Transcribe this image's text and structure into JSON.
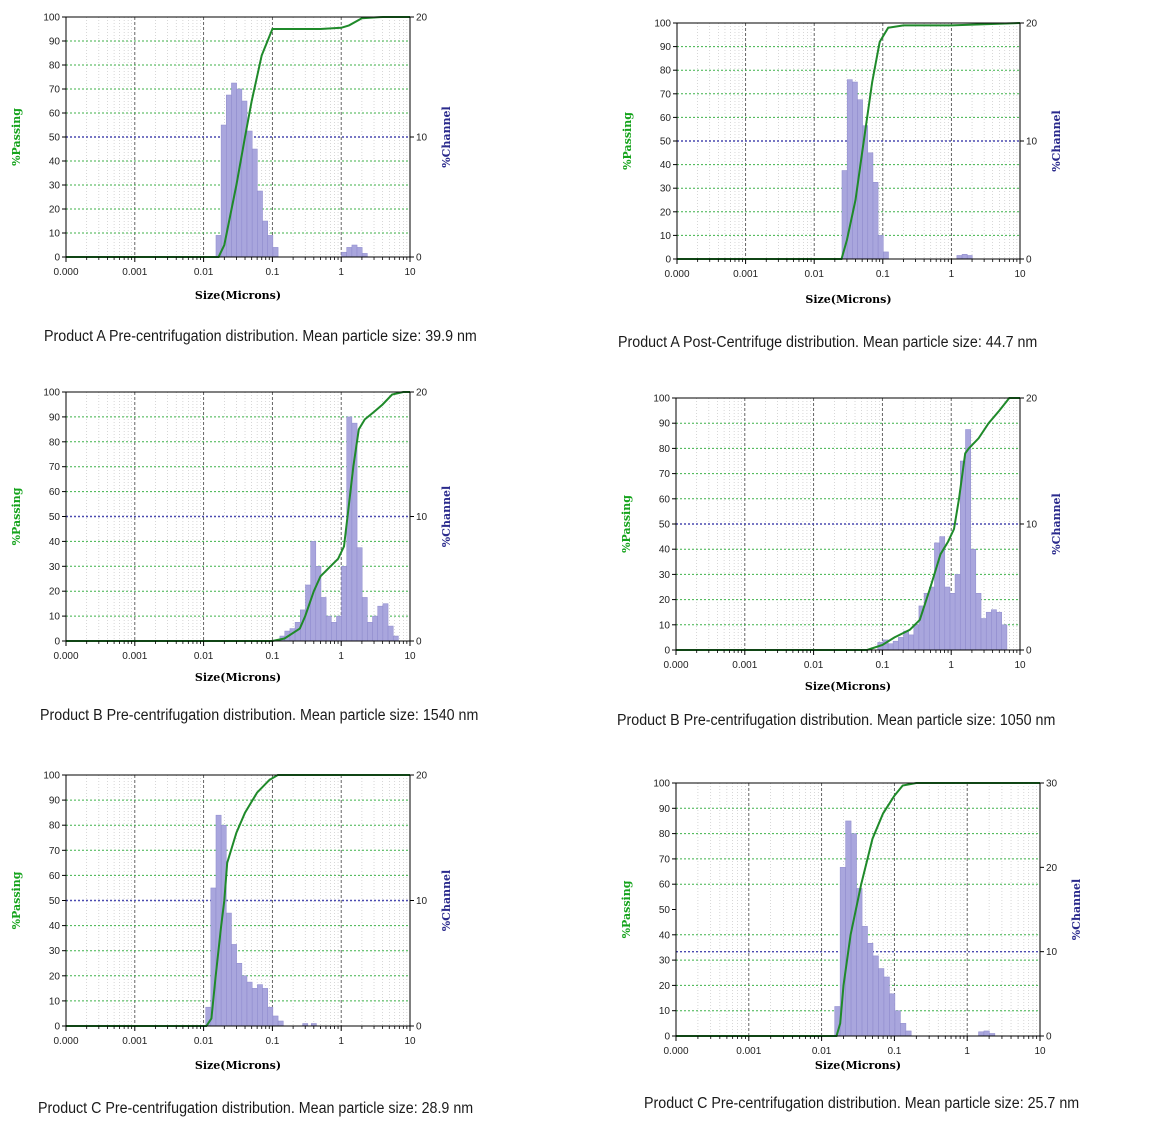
{
  "chart_data": [
    {
      "type": "bar",
      "caption": "Product A Pre-centrifugation distribution. Mean particle size: 39.9 nm",
      "xlabel": "Size(Microns)",
      "ylabel_left": "%Passing",
      "ylabel_right": "%Channel",
      "xscale": "log",
      "xlim": [
        0.0001,
        10
      ],
      "x_ticks": [
        "0.000",
        "0.001",
        "0.01",
        "0.1",
        "1",
        "10"
      ],
      "ylim_left": [
        0,
        100
      ],
      "ylim_right": [
        0,
        20
      ],
      "y_ticks_left": [
        "0",
        "10",
        "20",
        "30",
        "40",
        "50",
        "60",
        "70",
        "80",
        "90",
        "100"
      ],
      "y_ticks_right": [
        "0",
        "10",
        "20"
      ],
      "reference_line_right": 10,
      "channel_series": [
        [
          0.0165,
          1.8
        ],
        [
          0.0196,
          11.0
        ],
        [
          0.0233,
          13.5
        ],
        [
          0.0277,
          14.5
        ],
        [
          0.033,
          14.0
        ],
        [
          0.0392,
          13.0
        ],
        [
          0.0466,
          10.5
        ],
        [
          0.0554,
          9.0
        ],
        [
          0.0659,
          5.5
        ],
        [
          0.0784,
          3.0
        ],
        [
          0.0932,
          1.8
        ],
        [
          0.111,
          0.8
        ],
        [
          1.1,
          0.4
        ],
        [
          1.31,
          0.8
        ],
        [
          1.56,
          1.0
        ],
        [
          1.85,
          0.8
        ],
        [
          2.2,
          0.3
        ]
      ],
      "passing_curve": [
        [
          0.0001,
          0
        ],
        [
          0.0165,
          0
        ],
        [
          0.02,
          5
        ],
        [
          0.03,
          30
        ],
        [
          0.04,
          50
        ],
        [
          0.05,
          65
        ],
        [
          0.07,
          84
        ],
        [
          0.1,
          95
        ],
        [
          0.14,
          95
        ],
        [
          0.5,
          95
        ],
        [
          1,
          95.5
        ],
        [
          1.3,
          96.5
        ],
        [
          2,
          99.5
        ],
        [
          4,
          100
        ],
        [
          10,
          100
        ]
      ]
    },
    {
      "type": "bar",
      "caption": "Product A Post-Centrifuge distribution. Mean particle size: 44.7 nm",
      "xlabel": "Size(Microns)",
      "ylabel_left": "%Passing",
      "ylabel_right": "%Channel",
      "xscale": "log",
      "xlim": [
        0.0001,
        10
      ],
      "x_ticks": [
        "0.000",
        "0.001",
        "0.01",
        "0.1",
        "1",
        "10"
      ],
      "ylim_left": [
        0,
        100
      ],
      "ylim_right": [
        0,
        20
      ],
      "y_ticks_left": [
        "0",
        "10",
        "20",
        "30",
        "40",
        "50",
        "60",
        "70",
        "80",
        "90",
        "100"
      ],
      "y_ticks_right": [
        "0",
        "10",
        "20"
      ],
      "reference_line_right": 10,
      "channel_series": [
        [
          0.0277,
          7.5
        ],
        [
          0.033,
          15.2
        ],
        [
          0.0392,
          15.0
        ],
        [
          0.0466,
          13.5
        ],
        [
          0.0554,
          11.3
        ],
        [
          0.0659,
          9.0
        ],
        [
          0.0784,
          6.5
        ],
        [
          0.0932,
          2.0
        ],
        [
          0.111,
          0.6
        ],
        [
          1.31,
          0.3
        ],
        [
          1.56,
          0.4
        ],
        [
          1.85,
          0.3
        ]
      ],
      "passing_curve": [
        [
          0.0001,
          0
        ],
        [
          0.025,
          0
        ],
        [
          0.03,
          8
        ],
        [
          0.04,
          25
        ],
        [
          0.05,
          45
        ],
        [
          0.07,
          75
        ],
        [
          0.09,
          92
        ],
        [
          0.12,
          98
        ],
        [
          0.2,
          99
        ],
        [
          1,
          99
        ],
        [
          10,
          100
        ]
      ]
    },
    {
      "type": "bar",
      "caption": "Product B Pre-centrifugation distribution. Mean particle size: 1540 nm",
      "xlabel": "Size(Microns)",
      "ylabel_left": "%Passing",
      "ylabel_right": "%Channel",
      "xscale": "log",
      "xlim": [
        0.0001,
        10
      ],
      "x_ticks": [
        "0.000",
        "0.001",
        "0.01",
        "0.1",
        "1",
        "10"
      ],
      "ylim_left": [
        0,
        100
      ],
      "ylim_right": [
        0,
        20
      ],
      "y_ticks_left": [
        "0",
        "10",
        "20",
        "30",
        "40",
        "50",
        "60",
        "70",
        "80",
        "90",
        "100"
      ],
      "y_ticks_right": [
        "0",
        "10",
        "20"
      ],
      "reference_line_right": 10,
      "channel_series": [
        [
          0.14,
          0.4
        ],
        [
          0.165,
          0.8
        ],
        [
          0.196,
          1.0
        ],
        [
          0.233,
          1.5
        ],
        [
          0.277,
          2.5
        ],
        [
          0.33,
          4.5
        ],
        [
          0.392,
          8.0
        ],
        [
          0.466,
          6.0
        ],
        [
          0.554,
          3.5
        ],
        [
          0.659,
          2.0
        ],
        [
          0.784,
          1.5
        ],
        [
          0.932,
          2.0
        ],
        [
          1.1,
          6.0
        ],
        [
          1.31,
          18.0
        ],
        [
          1.56,
          17.5
        ],
        [
          1.85,
          7.5
        ],
        [
          2.2,
          3.5
        ],
        [
          2.62,
          1.5
        ],
        [
          3.11,
          2.0
        ],
        [
          3.7,
          2.8
        ],
        [
          4.4,
          3.0
        ],
        [
          5.23,
          1.2
        ],
        [
          6.22,
          0.4
        ]
      ],
      "passing_curve": [
        [
          0.0001,
          0
        ],
        [
          0.1,
          0
        ],
        [
          0.15,
          1
        ],
        [
          0.25,
          5
        ],
        [
          0.3,
          10
        ],
        [
          0.4,
          20
        ],
        [
          0.5,
          26
        ],
        [
          0.7,
          30
        ],
        [
          0.9,
          33
        ],
        [
          1.1,
          38
        ],
        [
          1.3,
          55
        ],
        [
          1.5,
          70
        ],
        [
          1.8,
          85
        ],
        [
          2.2,
          89
        ],
        [
          3,
          92
        ],
        [
          4,
          95
        ],
        [
          5.5,
          99
        ],
        [
          8,
          100
        ],
        [
          10,
          100
        ]
      ]
    },
    {
      "type": "bar",
      "caption": "Product B Pre-centrifugation distribution. Mean particle size: 1050 nm",
      "xlabel": "Size(Microns)",
      "ylabel_left": "%Passing",
      "ylabel_right": "%Channel",
      "xscale": "log",
      "xlim": [
        0.0001,
        10
      ],
      "x_ticks": [
        "0.000",
        "0.001",
        "0.01",
        "0.1",
        "1",
        "10"
      ],
      "ylim_left": [
        0,
        100
      ],
      "ylim_right": [
        0,
        20
      ],
      "y_ticks_left": [
        "0",
        "10",
        "20",
        "30",
        "40",
        "50",
        "60",
        "70",
        "80",
        "90",
        "100"
      ],
      "y_ticks_right": [
        "0",
        "10",
        "20"
      ],
      "reference_line_right": 10,
      "channel_series": [
        [
          0.0932,
          0.6
        ],
        [
          0.111,
          0.8
        ],
        [
          0.132,
          0.5
        ],
        [
          0.156,
          0.7
        ],
        [
          0.186,
          1.0
        ],
        [
          0.221,
          1.5
        ],
        [
          0.262,
          1.2
        ],
        [
          0.312,
          2.0
        ],
        [
          0.37,
          3.5
        ],
        [
          0.44,
          4.5
        ],
        [
          0.523,
          5.0
        ],
        [
          0.622,
          8.5
        ],
        [
          0.74,
          9.0
        ],
        [
          0.88,
          5.0
        ],
        [
          1.05,
          4.5
        ],
        [
          1.24,
          6.0
        ],
        [
          1.48,
          15.0
        ],
        [
          1.76,
          17.5
        ],
        [
          2.09,
          8.0
        ],
        [
          2.49,
          4.5
        ],
        [
          2.96,
          2.5
        ],
        [
          3.52,
          3.0
        ],
        [
          4.18,
          3.2
        ],
        [
          4.97,
          3.0
        ],
        [
          5.92,
          2.0
        ]
      ],
      "passing_curve": [
        [
          0.0001,
          0
        ],
        [
          0.06,
          0
        ],
        [
          0.1,
          2
        ],
        [
          0.15,
          5
        ],
        [
          0.25,
          8
        ],
        [
          0.35,
          12
        ],
        [
          0.5,
          25
        ],
        [
          0.7,
          38
        ],
        [
          0.9,
          43
        ],
        [
          1.1,
          48
        ],
        [
          1.3,
          60
        ],
        [
          1.6,
          78
        ],
        [
          1.8,
          80
        ],
        [
          2.5,
          84
        ],
        [
          3.5,
          90
        ],
        [
          5,
          95
        ],
        [
          7,
          100
        ],
        [
          10,
          100
        ]
      ]
    },
    {
      "type": "bar",
      "caption": "Product C Pre-centrifugation distribution. Mean particle size: 28.9 nm",
      "xlabel": "Size(Microns)",
      "ylabel_left": "%Passing",
      "ylabel_right": "%Channel",
      "xscale": "log",
      "xlim": [
        0.0001,
        10
      ],
      "x_ticks": [
        "0.000",
        "0.001",
        "0.01",
        "0.1",
        "1",
        "10"
      ],
      "ylim_left": [
        0,
        100
      ],
      "ylim_right": [
        0,
        20
      ],
      "y_ticks_left": [
        "0",
        "10",
        "20",
        "30",
        "40",
        "50",
        "60",
        "70",
        "80",
        "90",
        "100"
      ],
      "y_ticks_right": [
        "0",
        "10",
        "20"
      ],
      "reference_line_right": 10,
      "channel_series": [
        [
          0.0117,
          1.5
        ],
        [
          0.0139,
          11.0
        ],
        [
          0.0165,
          16.8
        ],
        [
          0.0196,
          16.0
        ],
        [
          0.0233,
          9.0
        ],
        [
          0.0277,
          6.5
        ],
        [
          0.033,
          5.0
        ],
        [
          0.0392,
          4.0
        ],
        [
          0.0466,
          3.5
        ],
        [
          0.0554,
          3.0
        ],
        [
          0.0659,
          3.3
        ],
        [
          0.0784,
          3.0
        ],
        [
          0.0932,
          1.5
        ],
        [
          0.111,
          0.8
        ],
        [
          0.132,
          0.4
        ],
        [
          0.3,
          0.2
        ],
        [
          0.4,
          0.2
        ]
      ],
      "passing_curve": [
        [
          0.0001,
          0
        ],
        [
          0.011,
          0
        ],
        [
          0.013,
          3
        ],
        [
          0.015,
          20
        ],
        [
          0.018,
          40
        ],
        [
          0.02,
          50
        ],
        [
          0.022,
          65
        ],
        [
          0.03,
          77
        ],
        [
          0.04,
          85
        ],
        [
          0.06,
          93
        ],
        [
          0.09,
          98
        ],
        [
          0.12,
          100
        ],
        [
          10,
          100
        ]
      ]
    },
    {
      "type": "bar",
      "caption": "Product C Pre-centrifugation distribution. Mean particle size: 25.7 nm",
      "xlabel": "Size(Microns)",
      "ylabel_left": "%Passing",
      "ylabel_right": "%Channel",
      "xscale": "log",
      "xlim": [
        0.0001,
        10
      ],
      "x_ticks": [
        "0.000",
        "0.001",
        "0.01",
        "0.1",
        "1",
        "10"
      ],
      "ylim_left": [
        0,
        100
      ],
      "ylim_right": [
        0,
        30
      ],
      "y_ticks_left": [
        "0",
        "10",
        "20",
        "30",
        "40",
        "50",
        "60",
        "70",
        "80",
        "90",
        "100"
      ],
      "y_ticks_right": [
        "0",
        "10",
        "20",
        "30"
      ],
      "reference_line_right": 10,
      "channel_series": [
        [
          0.0165,
          3.5
        ],
        [
          0.0196,
          20.0
        ],
        [
          0.0233,
          25.5
        ],
        [
          0.0277,
          24.0
        ],
        [
          0.033,
          17.5
        ],
        [
          0.0392,
          13.0
        ],
        [
          0.0466,
          11.0
        ],
        [
          0.0554,
          9.5
        ],
        [
          0.0659,
          8.0
        ],
        [
          0.0784,
          7.0
        ],
        [
          0.0932,
          5.0
        ],
        [
          0.111,
          3.0
        ],
        [
          0.132,
          1.5
        ],
        [
          0.156,
          0.6
        ],
        [
          1.56,
          0.5
        ],
        [
          1.85,
          0.6
        ],
        [
          2.2,
          0.3
        ]
      ],
      "passing_curve": [
        [
          0.0001,
          0
        ],
        [
          0.016,
          0
        ],
        [
          0.018,
          5
        ],
        [
          0.02,
          20
        ],
        [
          0.025,
          40
        ],
        [
          0.035,
          60
        ],
        [
          0.05,
          78
        ],
        [
          0.07,
          88
        ],
        [
          0.1,
          95
        ],
        [
          0.13,
          99
        ],
        [
          0.2,
          100
        ],
        [
          2,
          100
        ],
        [
          10,
          100
        ]
      ]
    }
  ],
  "colors": {
    "passing_curve": "#1f8a2a",
    "passing_label": "#15a31c",
    "channel_bars": "#a9a6dd",
    "channel_bar_edge": "#8d89cc",
    "channel_label": "#2a2a8c",
    "grid_major_vertical": "#555555",
    "grid_horizontal": "#3fb24a",
    "reference_line": "#4a4ab0"
  }
}
